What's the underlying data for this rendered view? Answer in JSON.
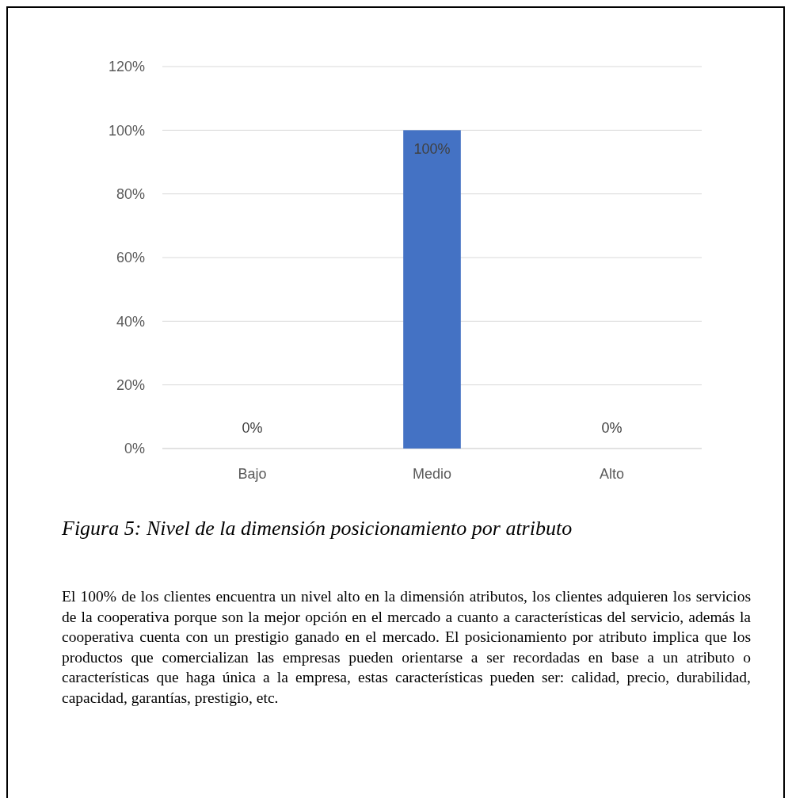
{
  "chart_data": {
    "type": "bar",
    "categories": [
      "Bajo",
      "Medio",
      "Alto"
    ],
    "values": [
      0,
      100,
      0
    ],
    "color": "#4472c4",
    "value_labels": [
      "0%",
      "100%",
      "0%"
    ],
    "ylim": [
      0,
      120
    ],
    "yticks": [
      {
        "value": 0,
        "label": "0%"
      },
      {
        "value": 20,
        "label": "20%"
      },
      {
        "value": 40,
        "label": "40%"
      },
      {
        "value": 60,
        "label": "60%"
      },
      {
        "value": 80,
        "label": "80%"
      },
      {
        "value": 100,
        "label": "100%"
      },
      {
        "value": 120,
        "label": "120%"
      }
    ],
    "grid": "y",
    "title": "Figura 5: Nivel de la dimensión posicionamiento por atributo",
    "annotations": [
      "El 100% de los clientes encuentra un nivel alto en la dimensión atributos, los clientes adquieren los servicios de la cooperativa porque son la mejor opción en el mercado a cuanto a características del servicio, además la cooperativa cuenta con un prestigio ganado en el mercado. El posicionamiento por atributo implica que los productos que comercializan las empresas pueden orientarse a ser recordadas en base a un atributo o características que haga única a la empresa, estas características pueden ser: calidad, precio, durabilidad, capacidad, garantías, prestigio, etc."
    ]
  }
}
